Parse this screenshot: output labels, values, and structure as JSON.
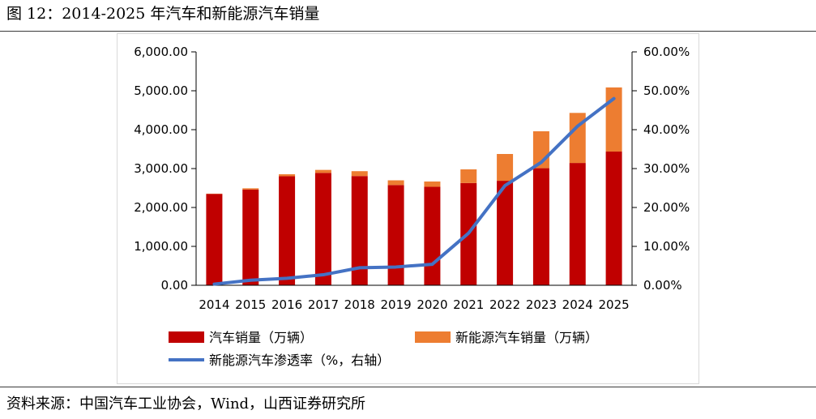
{
  "figure": {
    "title": "图 12：2014-2025 年汽车和新能源汽车销量",
    "source": "资料来源：中国汽车工业协会，Wind，山西证券研究所"
  },
  "colors": {
    "auto_sales": "#C00000",
    "nev_sales": "#ED7D31",
    "penetration": "#4472C4"
  },
  "chart_data": {
    "type": "bar",
    "categories": [
      "2014",
      "2015",
      "2016",
      "2017",
      "2018",
      "2019",
      "2020",
      "2021",
      "2022",
      "2023",
      "2024",
      "2025"
    ],
    "series": [
      {
        "name": "汽车销量（万辆）",
        "kind": "stacked-bar",
        "axis": "left",
        "values": [
          2349,
          2460,
          2803,
          2888,
          2808,
          2577,
          2531,
          2628,
          2686,
          3009,
          3144,
          3437
        ]
      },
      {
        "name": "新能源汽车销量（万辆）",
        "kind": "stacked-bar",
        "axis": "left",
        "values": [
          7,
          33,
          51,
          78,
          125,
          121,
          137,
          352,
          689,
          950,
          1287,
          1649
        ]
      },
      {
        "name": "新能源汽车渗透率（%，右轴）",
        "kind": "line",
        "axis": "right",
        "values": [
          0.3,
          1.3,
          1.8,
          2.7,
          4.5,
          4.7,
          5.4,
          13.4,
          25.6,
          31.6,
          40.9,
          48.0
        ]
      }
    ],
    "y_left": {
      "min": 0,
      "max": 6000,
      "step": 1000,
      "ticks": [
        "0.00",
        "1,000.00",
        "2,000.00",
        "3,000.00",
        "4,000.00",
        "5,000.00",
        "6,000.00"
      ]
    },
    "y_right": {
      "min": 0,
      "max": 60,
      "step": 10,
      "ticks": [
        "0.00%",
        "10.00%",
        "20.00%",
        "30.00%",
        "40.00%",
        "50.00%",
        "60.00%"
      ]
    },
    "grid": false,
    "legend_position": "bottom"
  }
}
